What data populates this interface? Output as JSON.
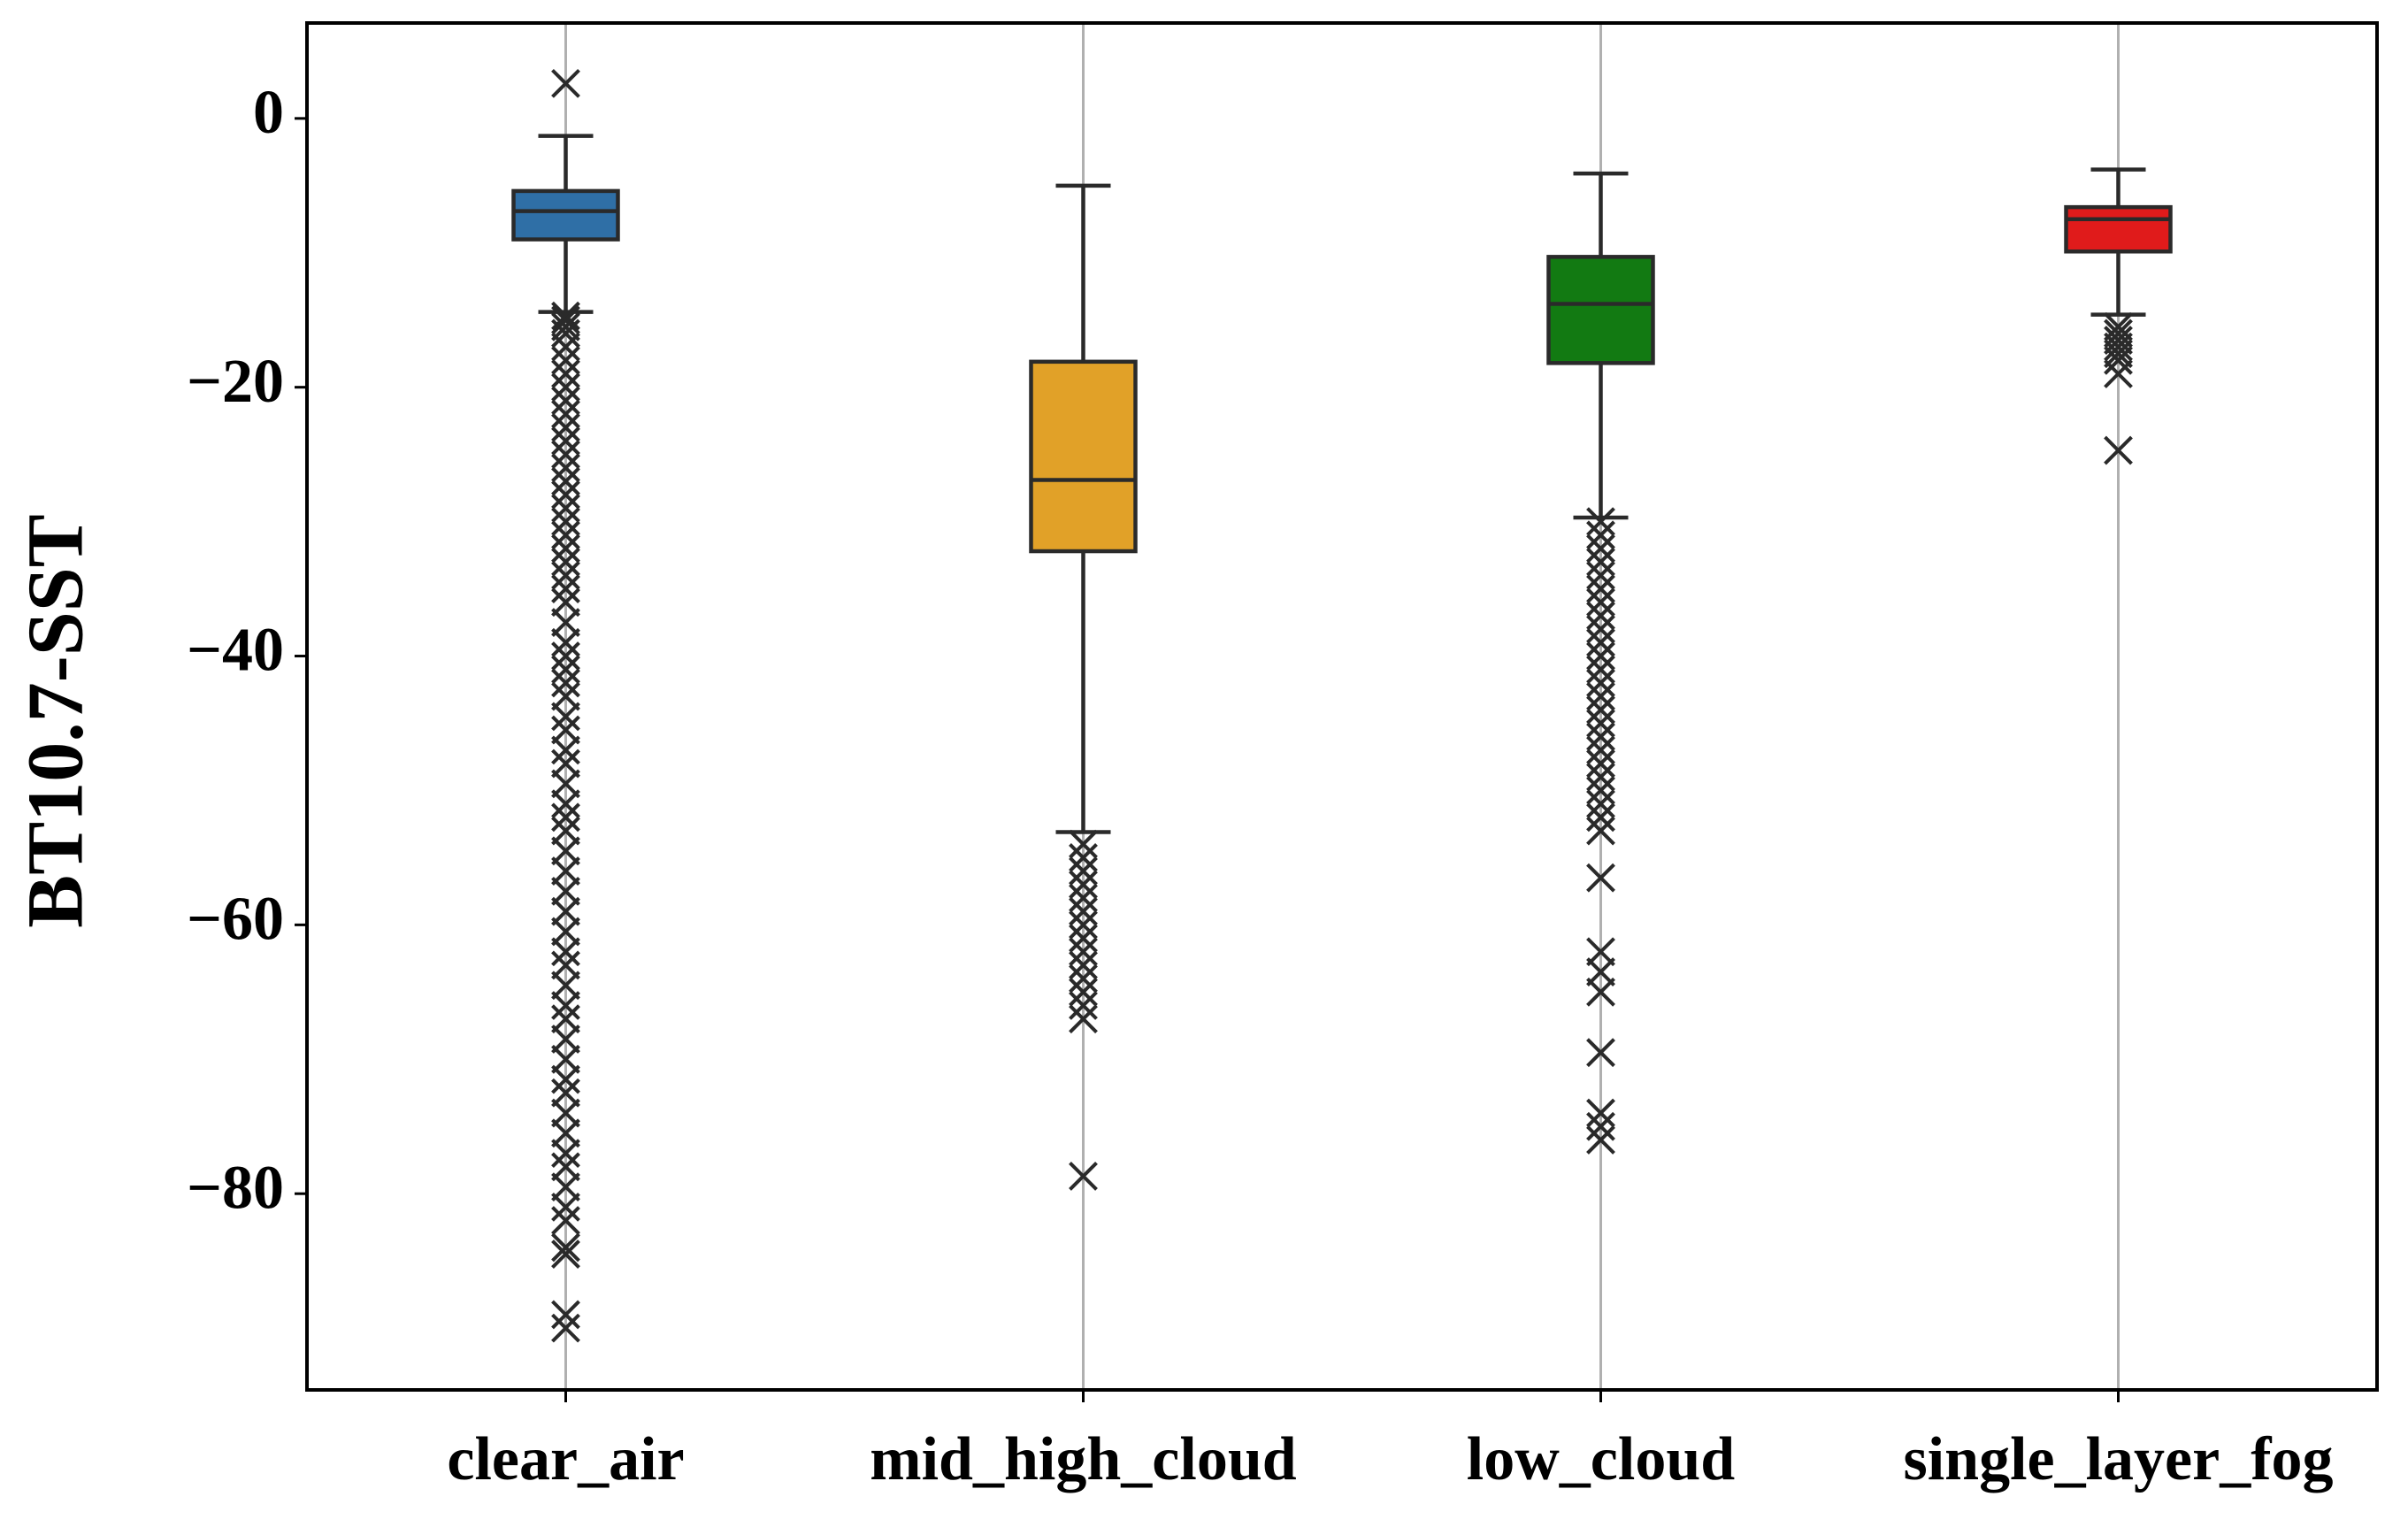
{
  "chart_data": {
    "type": "box",
    "ylabel": "BT10.7-SST",
    "categories": [
      "clear_air",
      "mid_high_cloud",
      "low_cloud",
      "single_layer_fog"
    ],
    "ylim": [
      -94.6,
      7.1
    ],
    "yticks": [
      {
        "value": -80,
        "label": "−80"
      },
      {
        "value": -60,
        "label": "−60"
      },
      {
        "value": -40,
        "label": "−40"
      },
      {
        "value": -20,
        "label": "−20"
      },
      0
    ],
    "xgrid": true,
    "boxes": [
      {
        "color": "#2f6fa6",
        "whislo": -14.4,
        "q1": -9.0,
        "med": -6.9,
        "q3": -5.4,
        "whishi": -1.3,
        "fliers": [
          2.6,
          -14.7,
          -15,
          -15.5,
          -16,
          -17,
          -18,
          -19,
          -20,
          -21,
          -22,
          -23,
          -24,
          -25,
          -26,
          -27,
          -28,
          -29,
          -30,
          -31,
          -32,
          -33,
          -34,
          -35,
          -36,
          -37.5,
          -39,
          -40,
          -41,
          -42,
          -43,
          -44.5,
          -45.5,
          -47,
          -48,
          -49.5,
          -51,
          -52,
          -53,
          -54.5,
          -56,
          -57.5,
          -59,
          -60.5,
          -62,
          -63,
          -64.5,
          -66,
          -67,
          -68.5,
          -70,
          -71.5,
          -72.5,
          -74,
          -75.5,
          -77,
          -78,
          -79.5,
          -81,
          -82,
          -84,
          -84.5,
          -89,
          -90
        ]
      },
      {
        "color": "#e1a128",
        "whislo": -53.1,
        "q1": -32.2,
        "med": -26.9,
        "q3": -18.1,
        "whishi": -5.0,
        "fliers": [
          -54,
          -55,
          -56,
          -57,
          -58,
          -59,
          -60,
          -61,
          -62,
          -63,
          -64,
          -65,
          -66,
          -67,
          -78.7
        ]
      },
      {
        "color": "#127a12",
        "whislo": -29.7,
        "q1": -18.2,
        "med": -13.8,
        "q3": -10.3,
        "whishi": -4.1,
        "fliers": [
          -30,
          -31,
          -32,
          -33,
          -34,
          -35,
          -36,
          -37,
          -38,
          -39,
          -40,
          -41,
          -42,
          -43,
          -44,
          -45,
          -46,
          -47,
          -48,
          -49,
          -50,
          -51,
          -52,
          -53,
          -56.5,
          -62,
          -63.5,
          -65,
          -69.5,
          -74,
          -75,
          -76
        ]
      },
      {
        "color": "#e01b1b",
        "whislo": -14.6,
        "q1": -9.9,
        "med": -7.5,
        "q3": -6.6,
        "whishi": -3.8,
        "fliers": [
          -15.5,
          -16,
          -16.5,
          -17,
          -17.5,
          -18,
          -19,
          -24.7
        ]
      }
    ]
  }
}
